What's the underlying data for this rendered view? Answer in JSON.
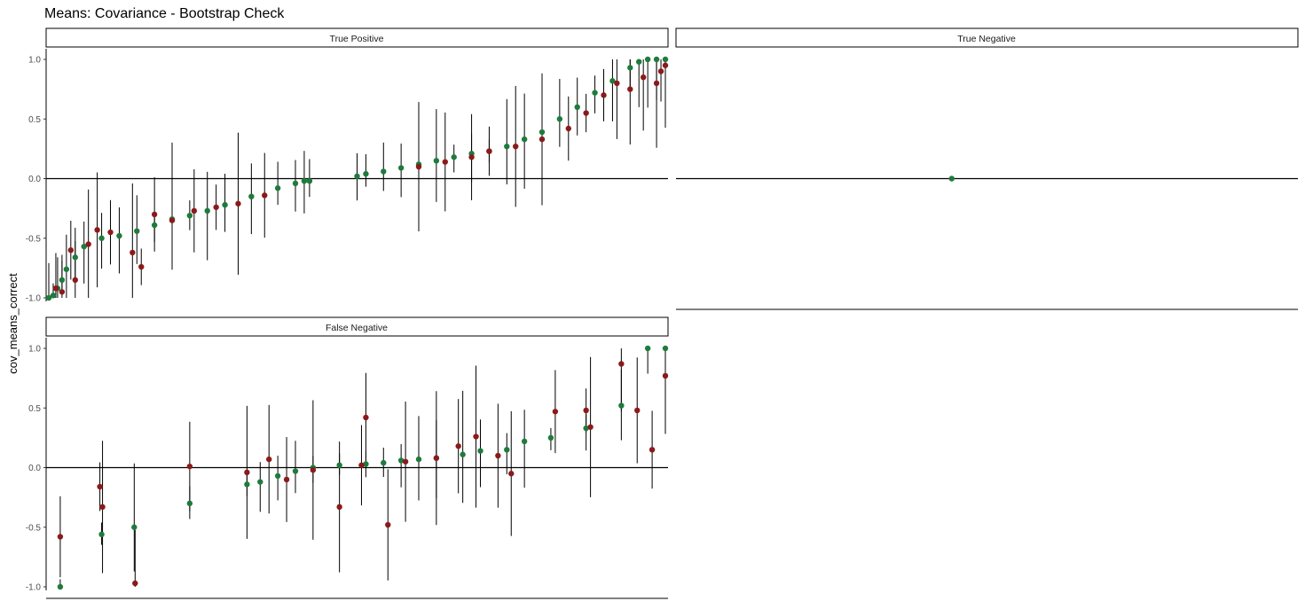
{
  "title": "Means: Covariance - Bootstrap Check",
  "ylabel": "cov_means_correct",
  "colors": {
    "observed": "#8b1a1a",
    "bootstrap": "#1e7b3c",
    "errorbar": "#000000",
    "reference_line": "#000000"
  },
  "chart_data": [
    {
      "type": "scatter",
      "panel": "True Positive",
      "ylim": [
        -1.05,
        1.05
      ],
      "yticks": [
        "1.0",
        "0.5",
        "0.0",
        "-0.5",
        "-1.0"
      ],
      "ytick_values": [
        1.0,
        0.5,
        0.0,
        -0.5,
        -1.0
      ],
      "hline": 0,
      "grid": false,
      "notes_visible": "x axis has no labels or ticks",
      "series": [
        {
          "role": "bootstrap",
          "x": [
            0,
            5,
            10,
            15,
            20,
            30,
            40,
            60,
            80,
            100,
            120,
            140,
            160,
            180,
            200,
            230,
            260,
            280,
            290,
            296,
            350,
            360,
            380,
            400,
            420,
            440,
            460,
            480,
            500,
            520,
            540,
            560,
            580,
            600,
            620,
            640,
            660,
            670,
            680,
            690,
            700
          ],
          "y": [
            -1.0,
            -0.98,
            -0.92,
            -0.85,
            -0.76,
            -0.66,
            -0.57,
            -0.5,
            -0.48,
            -0.44,
            -0.39,
            -0.34,
            -0.31,
            -0.27,
            -0.22,
            -0.15,
            -0.08,
            -0.04,
            -0.02,
            -0.02,
            0.02,
            0.04,
            0.06,
            0.09,
            0.12,
            0.15,
            0.18,
            0.21,
            0.23,
            0.27,
            0.33,
            0.39,
            0.5,
            0.6,
            0.72,
            0.82,
            0.93,
            0.98,
            1.0,
            1.0,
            1.0
          ]
        },
        {
          "role": "observed",
          "x": [
            8,
            15,
            25,
            30,
            45,
            55,
            70,
            95,
            105,
            120,
            140,
            165,
            190,
            215,
            245,
            420,
            450,
            480,
            500,
            530,
            560,
            590,
            610,
            630,
            645,
            660,
            675,
            690,
            695,
            700
          ],
          "y": [
            -0.92,
            -0.95,
            -0.6,
            -0.85,
            -0.55,
            -0.43,
            -0.45,
            -0.62,
            -0.74,
            -0.3,
            -0.35,
            -0.27,
            -0.24,
            -0.21,
            -0.14,
            0.1,
            0.14,
            0.18,
            0.23,
            0.27,
            0.33,
            0.42,
            0.55,
            0.7,
            0.8,
            0.75,
            0.85,
            0.8,
            0.9,
            0.95
          ]
        }
      ]
    },
    {
      "type": "scatter",
      "panel": "True Negative",
      "ylim": [
        -1.05,
        1.05
      ],
      "hline": 0,
      "grid": false,
      "series": [
        {
          "role": "bootstrap",
          "x": [
            310
          ],
          "y": [
            0.0
          ]
        }
      ]
    },
    {
      "type": "scatter",
      "panel": "False Negative",
      "ylim": [
        -1.05,
        1.05
      ],
      "yticks": [
        "1.0",
        "0.5",
        "0.0",
        "-0.5",
        "-1.0"
      ],
      "ytick_values": [
        1.0,
        0.5,
        0.0,
        -0.5,
        -1.0
      ],
      "hline": 0,
      "grid": false,
      "series": [
        {
          "role": "bootstrap",
          "x": [
            13,
            60,
            97,
            160,
            225,
            240,
            260,
            280,
            300,
            330,
            360,
            380,
            400,
            420,
            440,
            470,
            490,
            520,
            540,
            570,
            610,
            650,
            680,
            700
          ],
          "y": [
            -1.0,
            -0.56,
            -0.5,
            -0.3,
            -0.14,
            -0.12,
            -0.07,
            -0.03,
            0.0,
            0.02,
            0.03,
            0.04,
            0.06,
            0.07,
            0.08,
            0.11,
            0.14,
            0.15,
            0.22,
            0.25,
            0.33,
            0.52,
            1.0,
            1.0
          ]
        },
        {
          "role": "observed",
          "x": [
            13,
            58,
            61,
            98,
            160,
            225,
            250,
            270,
            300,
            330,
            355,
            360,
            385,
            405,
            440,
            465,
            485,
            510,
            525,
            575,
            610,
            615,
            650,
            668,
            685,
            700
          ],
          "y": [
            -0.58,
            -0.16,
            -0.33,
            -0.97,
            0.01,
            -0.04,
            0.07,
            -0.1,
            -0.02,
            -0.33,
            0.02,
            0.42,
            -0.48,
            0.05,
            0.08,
            0.18,
            0.26,
            0.1,
            -0.05,
            0.47,
            0.48,
            0.34,
            0.87,
            0.48,
            0.15,
            0.77
          ]
        }
      ]
    }
  ]
}
